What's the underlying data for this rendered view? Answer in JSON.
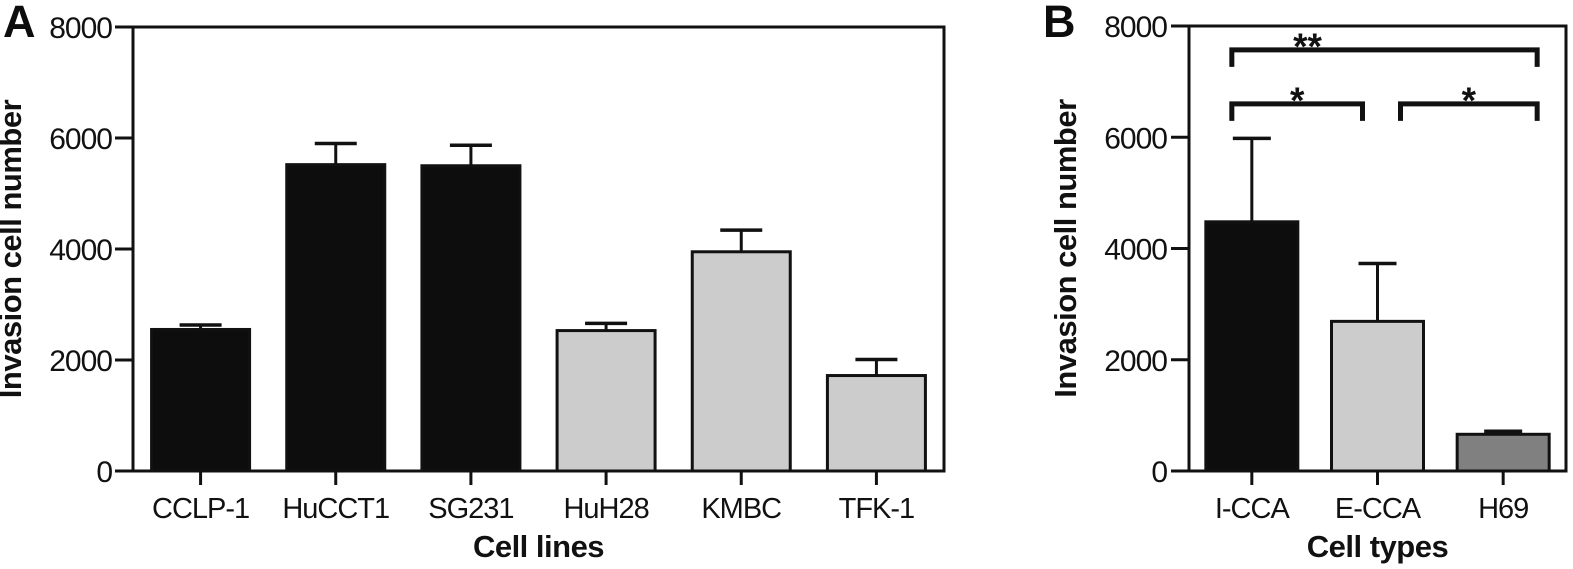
{
  "figure": {
    "description": "Invasion assay bar charts",
    "panels": [
      {
        "label": "A"
      },
      {
        "label": "B"
      }
    ]
  },
  "colors": {
    "black_bar": "#0d0d0d",
    "light_gray_bar": "#cccccc",
    "dark_gray_bar": "#808080",
    "axis": "#111111",
    "background": "#ffffff"
  },
  "chart_data": [
    {
      "type": "bar",
      "panel": "A",
      "title": "",
      "xlabel": "Cell lines",
      "ylabel": "Invasion cell number",
      "ylim": [
        0,
        8000
      ],
      "yticks": [
        0,
        2000,
        4000,
        6000,
        8000
      ],
      "grid": false,
      "frame": true,
      "legend": null,
      "categories": [
        "CCLP-1",
        "HuCCT1",
        "SG231",
        "HuH28",
        "KMBC",
        "TFK-1"
      ],
      "values": [
        2550,
        5520,
        5500,
        2530,
        3950,
        1720
      ],
      "errors_plus": [
        80,
        380,
        370,
        130,
        390,
        290
      ],
      "bar_colors": [
        "#0d0d0d",
        "#0d0d0d",
        "#0d0d0d",
        "#cccccc",
        "#cccccc",
        "#cccccc"
      ],
      "bar_edge_color": "#111111"
    },
    {
      "type": "bar",
      "panel": "B",
      "title": "",
      "xlabel": "Cell types",
      "ylabel": "Invasion cell number",
      "ylim": [
        0,
        8000
      ],
      "yticks": [
        0,
        2000,
        4000,
        6000,
        8000
      ],
      "grid": false,
      "frame": true,
      "legend": null,
      "categories": [
        "I-CCA",
        "E-CCA",
        "H69"
      ],
      "values": [
        4480,
        2690,
        660
      ],
      "errors_plus": [
        1500,
        1040,
        55
      ],
      "bar_colors": [
        "#0d0d0d",
        "#cccccc",
        "#808080"
      ],
      "bar_edge_color": "#111111",
      "significance": [
        {
          "groups": [
            "I-CCA",
            "H69"
          ],
          "label": "**",
          "y": 7570
        },
        {
          "groups": [
            "I-CCA",
            "E-CCA"
          ],
          "label": "*",
          "y": 6600
        },
        {
          "groups": [
            "E-CCA",
            "H69"
          ],
          "label": "*",
          "y": 6600
        }
      ]
    }
  ]
}
